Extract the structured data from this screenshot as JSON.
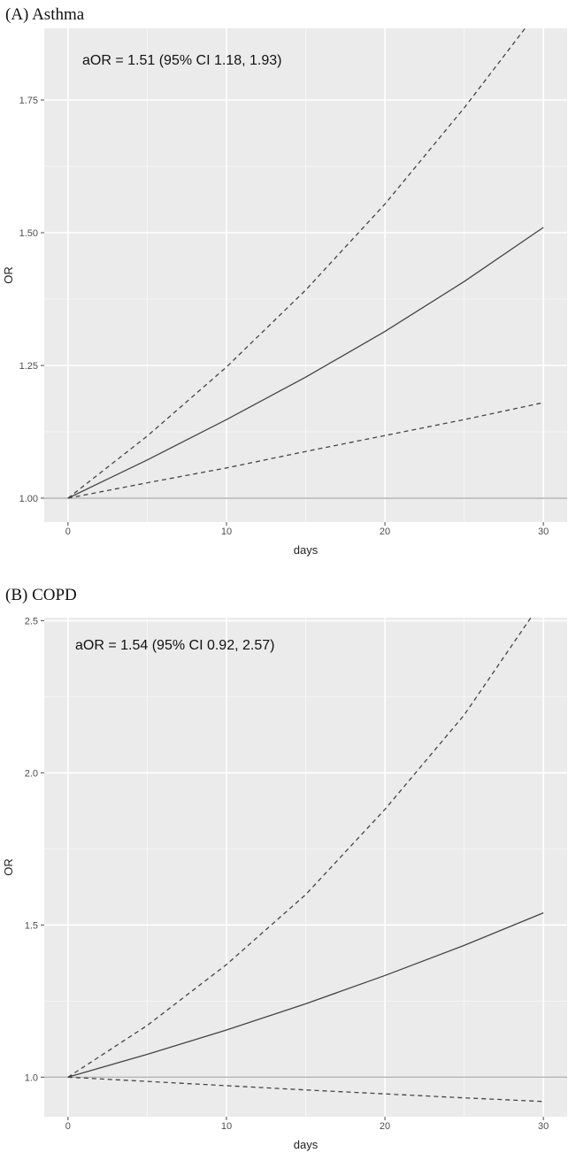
{
  "chart_data": [
    {
      "type": "line",
      "title": "(A) Asthma",
      "xlabel": "days",
      "ylabel": "OR",
      "annotation": "aOR = 1.51 (95% CI 1.18, 1.93)",
      "xlim": [
        -1.5,
        31.5
      ],
      "ylim": [
        0.955,
        1.885
      ],
      "x_ticks": [
        0,
        10,
        20,
        30
      ],
      "x_tick_labels": [
        "0",
        "10",
        "20",
        "30"
      ],
      "y_ticks": [
        1.0,
        1.25,
        1.5,
        1.75
      ],
      "y_tick_labels": [
        "1.00",
        "1.25",
        "1.50",
        "1.75"
      ],
      "reference_line": 1.0,
      "grid": true,
      "series": [
        {
          "style": "solid",
          "x": [
            0,
            5,
            10,
            15,
            20,
            25,
            30
          ],
          "values": [
            1.0,
            1.072,
            1.148,
            1.228,
            1.314,
            1.408,
            1.51
          ]
        },
        {
          "style": "dashed",
          "x": [
            0,
            5,
            10,
            15,
            20,
            25,
            30
          ],
          "values": [
            1.0,
            1.117,
            1.247,
            1.392,
            1.554,
            1.735,
            1.93
          ]
        },
        {
          "style": "dashed",
          "x": [
            0,
            5,
            10,
            15,
            20,
            25,
            30
          ],
          "values": [
            1.0,
            1.029,
            1.057,
            1.088,
            1.118,
            1.148,
            1.18
          ]
        }
      ]
    },
    {
      "type": "line",
      "title": "(B) COPD",
      "xlabel": "days",
      "ylabel": "OR",
      "annotation": "aOR = 1.54 (95% CI 0.92, 2.57)",
      "xlim": [
        -1.5,
        31.5
      ],
      "ylim": [
        0.87,
        2.51
      ],
      "x_ticks": [
        0,
        10,
        20,
        30
      ],
      "x_tick_labels": [
        "0",
        "10",
        "20",
        "30"
      ],
      "y_ticks": [
        1.0,
        1.5,
        2.0,
        2.5
      ],
      "y_tick_labels": [
        "1.0",
        "1.5",
        "2.0",
        "2.5"
      ],
      "reference_line": 1.0,
      "grid": true,
      "series": [
        {
          "style": "solid",
          "x": [
            0,
            5,
            10,
            15,
            20,
            25,
            30
          ],
          "values": [
            1.0,
            1.075,
            1.155,
            1.241,
            1.334,
            1.433,
            1.54
          ]
        },
        {
          "style": "dashed",
          "x": [
            0,
            5,
            10,
            15,
            20,
            25,
            30
          ],
          "values": [
            1.0,
            1.17,
            1.37,
            1.6,
            1.88,
            2.19,
            2.57
          ]
        },
        {
          "style": "dashed",
          "x": [
            0,
            5,
            10,
            15,
            20,
            25,
            30
          ],
          "values": [
            1.0,
            0.986,
            0.972,
            0.958,
            0.945,
            0.932,
            0.92
          ]
        }
      ]
    }
  ]
}
